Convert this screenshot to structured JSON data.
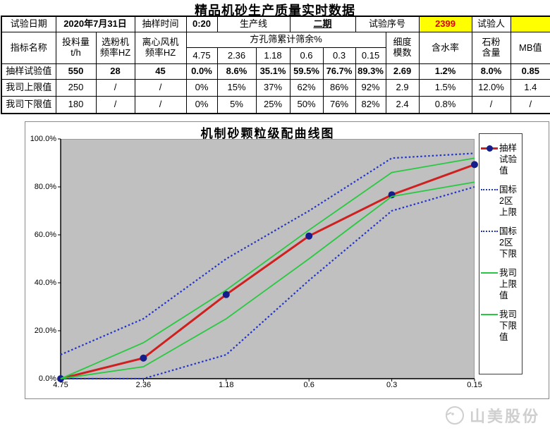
{
  "page_title": "精品机砂生产质量实时数据",
  "info": {
    "date_label": "试验日期",
    "date_value": "2020年7月31日",
    "time_label": "抽样时间",
    "time_value": "0:20",
    "line_label": "生产线",
    "line_value": "二期",
    "serial_label": "试验序号",
    "serial_value": "2399",
    "tester_label": "试验人",
    "tester_value": ""
  },
  "header": {
    "indicator": "指标名称",
    "feed": "投料量\nt/h",
    "separator": "选粉机\n频率HZ",
    "fan": "离心风机\n频率HZ",
    "sieve_group": "方孔筛累计筛余%",
    "sieves": [
      "4.75",
      "2.36",
      "1.18",
      "0.6",
      "0.3",
      "0.15"
    ],
    "fineness": "细度\n模数",
    "moisture": "含水率",
    "stone_powder": "石粉\n含量",
    "mb": "MB值"
  },
  "rows": [
    {
      "label": "抽样试验值",
      "values": [
        "550",
        "28",
        "45",
        "0.0%",
        "8.6%",
        "35.1%",
        "59.5%",
        "76.7%",
        "89.3%",
        "2.69",
        "1.2%",
        "8.0%",
        "0.85"
      ]
    },
    {
      "label": "我司上限值",
      "values": [
        "250",
        "/",
        "/",
        "0%",
        "15%",
        "37%",
        "62%",
        "86%",
        "92%",
        "2.9",
        "1.5%",
        "12.0%",
        "1.4"
      ]
    },
    {
      "label": "我司下限值",
      "values": [
        "180",
        "/",
        "/",
        "0%",
        "5%",
        "25%",
        "50%",
        "76%",
        "82%",
        "2.4",
        "0.8%",
        "/",
        "/"
      ]
    }
  ],
  "chart_data": {
    "type": "line",
    "title": "机制砂颗粒级配曲线图",
    "x_categories": [
      "4.75",
      "2.36",
      "1.18",
      "0.6",
      "0.3",
      "0.15"
    ],
    "y_ticks": [
      "100.0%",
      "80.0%",
      "60.0%",
      "40.0%",
      "20.0%",
      "0.0%"
    ],
    "ylim": [
      0,
      100
    ],
    "grid": false,
    "plot_background": "#c0c0c0",
    "legend_position": "right",
    "series": [
      {
        "name": "抽样试验值",
        "legend_lines": "抽样\n试验\n值",
        "values": [
          0,
          8.6,
          35.1,
          59.5,
          76.7,
          89.3
        ],
        "color": "#cf2020",
        "marker_color": "#151c8c",
        "style": "solid-marker"
      },
      {
        "name": "国标2区上限",
        "legend_lines": "国标\n2区\n上限",
        "values": [
          10,
          25,
          50,
          70,
          92,
          94
        ],
        "color": "#2233cc",
        "style": "dotted"
      },
      {
        "name": "国标2区下限",
        "legend_lines": "国标\n2区\n下限",
        "values": [
          0,
          0,
          10,
          41,
          70,
          80
        ],
        "color": "#2233cc",
        "style": "dotted"
      },
      {
        "name": "我司上限值",
        "legend_lines": "我司\n上限\n值",
        "values": [
          0,
          15,
          37,
          62,
          86,
          92
        ],
        "color": "#28c940",
        "style": "solid"
      },
      {
        "name": "我司下限值",
        "legend_lines": "我司\n下限\n值",
        "values": [
          0,
          5,
          25,
          50,
          76,
          82
        ],
        "color": "#28c940",
        "style": "solid"
      }
    ]
  },
  "logo_text": "山美股份",
  "colors": {
    "highlight_bg": "#ffff00",
    "serial_text": "#e00000"
  }
}
